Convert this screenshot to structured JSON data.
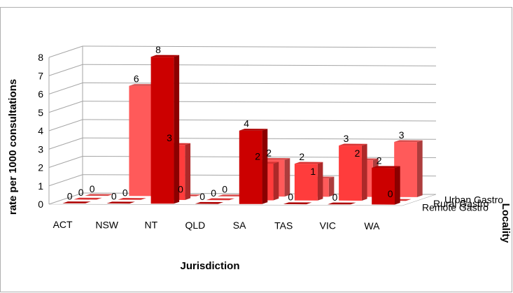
{
  "chart_data": {
    "type": "bar",
    "xlabel": "Jurisdiction",
    "ylabel": "rate per 1000 consultations",
    "zlabel": "Locality",
    "categories": [
      "ACT",
      "NSW",
      "NT",
      "QLD",
      "SA",
      "TAS",
      "VIC",
      "WA"
    ],
    "series": [
      {
        "name": "Remote Gastro",
        "values": [
          0,
          0,
          8,
          0,
          4,
          0,
          0,
          2
        ],
        "color": "#cc0000"
      },
      {
        "name": "Rural Gastro",
        "values": [
          0,
          0,
          3,
          0,
          2,
          2,
          3,
          0
        ],
        "color": "#ff3c3c"
      },
      {
        "name": "Urban Gastro",
        "values": [
          0,
          6,
          0,
          0,
          2,
          1,
          2,
          3
        ],
        "color": "#ff5a5a"
      }
    ],
    "ylim": [
      0,
      8
    ],
    "yticks": [
      0,
      1,
      2,
      3,
      4,
      5,
      6,
      7,
      8
    ],
    "grid": true
  }
}
